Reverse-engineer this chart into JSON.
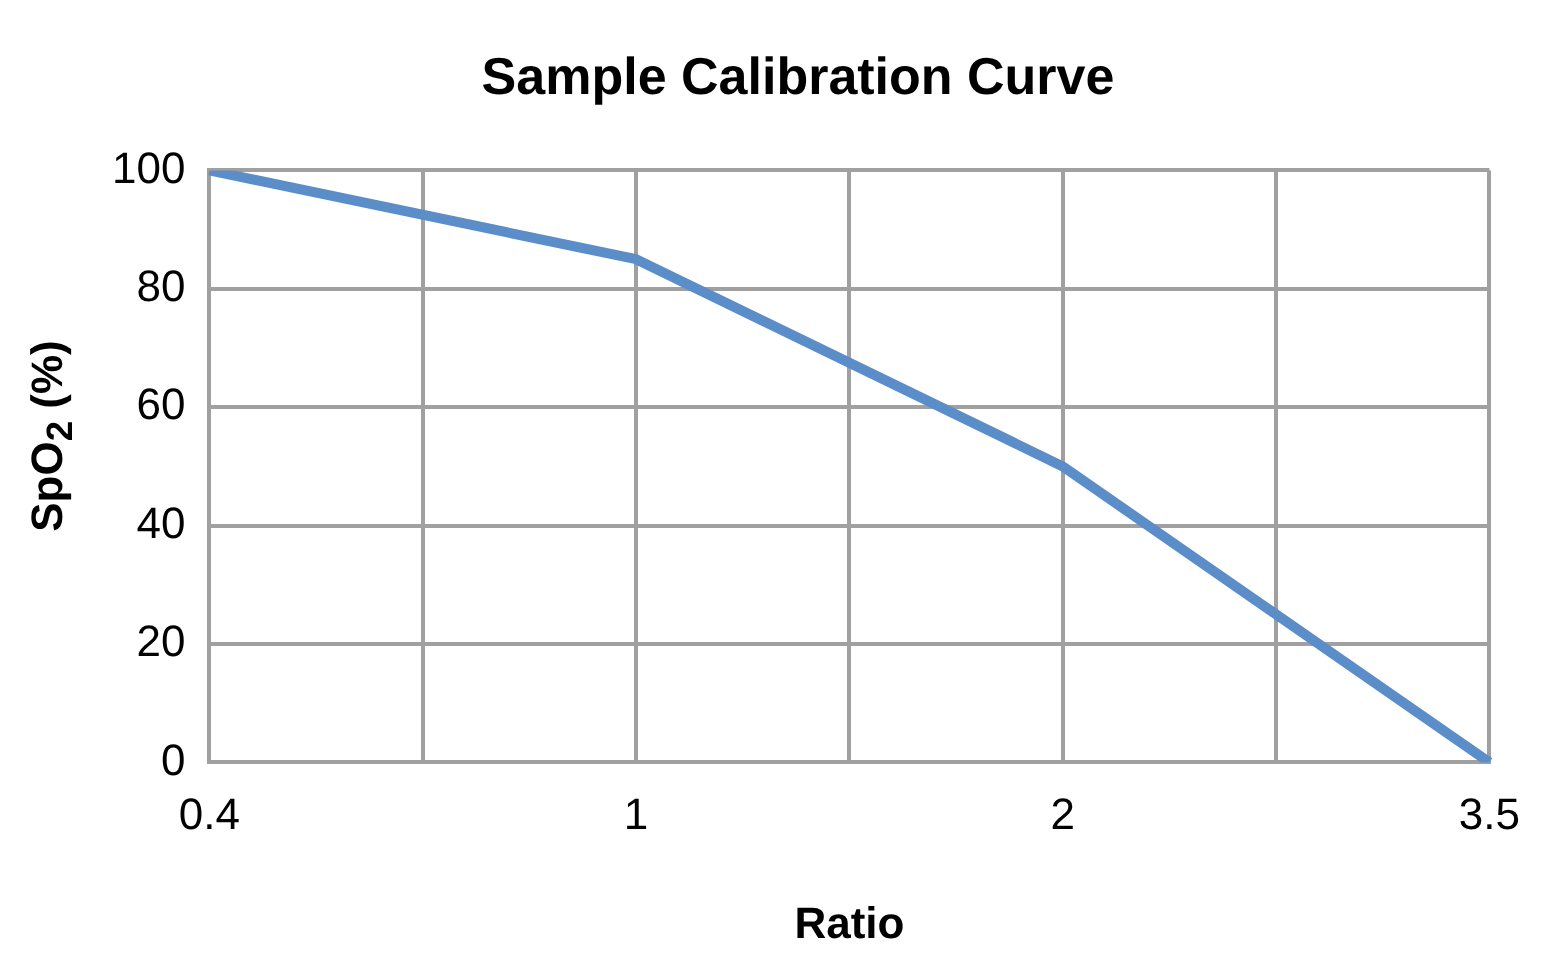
{
  "chart_data": {
    "type": "line",
    "title": "Sample Calibration Curve",
    "xlabel": "Ratio",
    "ylabel": "SpO$_{2}$ (%)",
    "categories": [
      "0.4",
      null,
      "1",
      null,
      "2",
      null,
      "3.5"
    ],
    "series": [
      {
        "color": "#5b8dc8",
        "values": [
          100,
          null,
          85,
          null,
          50,
          null,
          0
        ]
      }
    ],
    "ylim": [
      0,
      100
    ],
    "yticks": [
      0,
      20,
      40,
      60,
      80,
      100
    ],
    "grid": true,
    "legend": false,
    "marker": "none",
    "line_style": "solid"
  }
}
